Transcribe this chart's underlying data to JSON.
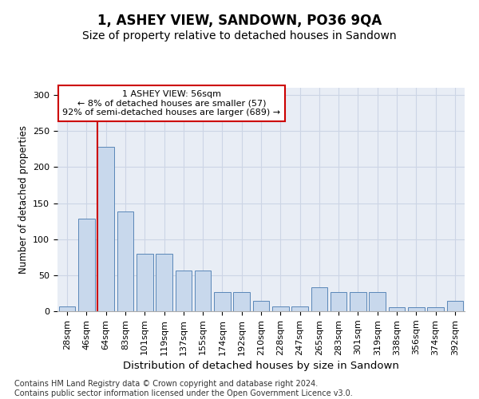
{
  "title": "1, ASHEY VIEW, SANDOWN, PO36 9QA",
  "subtitle": "Size of property relative to detached houses in Sandown",
  "xlabel": "Distribution of detached houses by size in Sandown",
  "ylabel": "Number of detached properties",
  "bar_labels": [
    "28sqm",
    "46sqm",
    "64sqm",
    "83sqm",
    "101sqm",
    "119sqm",
    "137sqm",
    "155sqm",
    "174sqm",
    "192sqm",
    "210sqm",
    "228sqm",
    "247sqm",
    "265sqm",
    "283sqm",
    "301sqm",
    "319sqm",
    "338sqm",
    "356sqm",
    "374sqm",
    "392sqm"
  ],
  "bar_values": [
    7,
    128,
    228,
    138,
    80,
    80,
    57,
    57,
    27,
    27,
    14,
    7,
    7,
    33,
    27,
    27,
    27,
    5,
    5,
    5,
    14
  ],
  "bar_color": "#c8d8ec",
  "bar_edge_color": "#5a87b8",
  "vline_color": "#cc0000",
  "annotation_text": "1 ASHEY VIEW: 56sqm\n← 8% of detached houses are smaller (57)\n92% of semi-detached houses are larger (689) →",
  "annotation_box_color": "#ffffff",
  "annotation_box_edge": "#cc0000",
  "ylim": [
    0,
    310
  ],
  "yticks": [
    0,
    50,
    100,
    150,
    200,
    250,
    300
  ],
  "grid_color": "#ccd5e5",
  "background_color": "#e8edf5",
  "footer": "Contains HM Land Registry data © Crown copyright and database right 2024.\nContains public sector information licensed under the Open Government Licence v3.0.",
  "title_fontsize": 12,
  "subtitle_fontsize": 10,
  "xlabel_fontsize": 9.5,
  "ylabel_fontsize": 8.5,
  "footer_fontsize": 7,
  "tick_fontsize": 8
}
